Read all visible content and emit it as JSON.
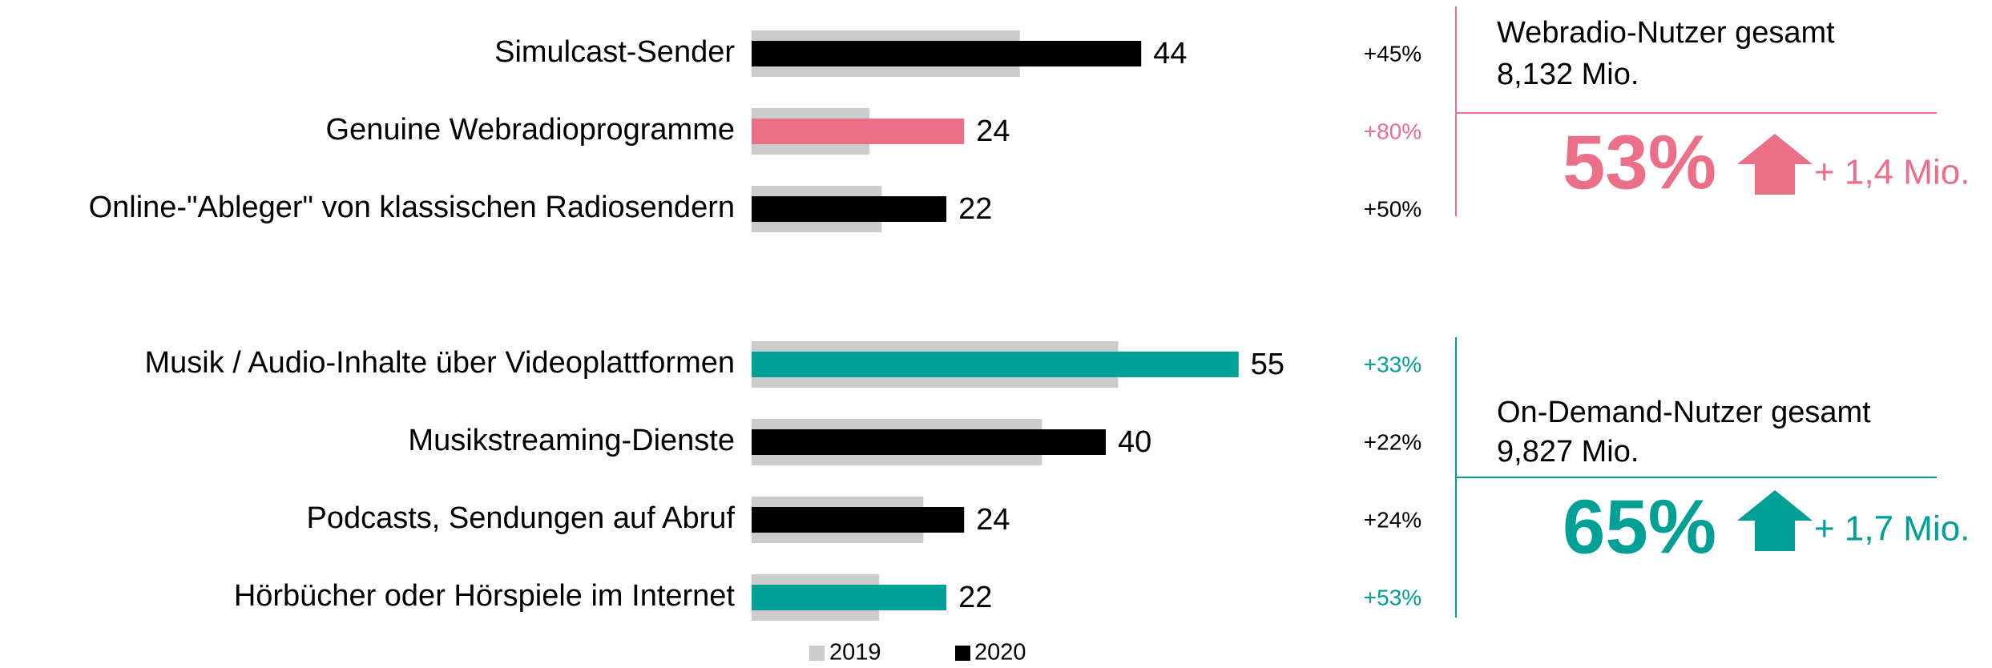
{
  "chart_data": {
    "type": "hbar",
    "categories": [
      "Simulcast-Sender",
      "Genuine Webradioprogramme",
      "Online-\"Ableger\" von klassischen Radiosendern",
      "Musik / Audio-Inhalte über Videoplattformen",
      "Musikstreaming-Dienste",
      "Podcasts, Sendungen auf Abruf",
      "Hörbücher oder Hörspiele im Internet"
    ],
    "series": [
      {
        "name": "2019",
        "color": "#cccccc",
        "values": [
          30.3,
          13.3,
          14.7,
          41.4,
          32.8,
          19.4,
          14.4
        ]
      },
      {
        "name": "2020",
        "color": "#000000",
        "colors": [
          "#000000",
          "#ec6f89",
          "#000000",
          "#00a096",
          "#000000",
          "#000000",
          "#00a096"
        ],
        "values": [
          44,
          24,
          22,
          55,
          40,
          24,
          22
        ]
      }
    ],
    "change_labels": [
      "+45%",
      "+80%",
      "+50%",
      "+33%",
      "+22%",
      "+24%",
      "+53%"
    ],
    "xlim": [
      0,
      100
    ],
    "panels": [
      {
        "title": "Webradio-Nutzer gesamt",
        "subtitle": "8,132 Mio.",
        "share": "53%",
        "growth": "+ 1,4 Mio.",
        "color": "#ec6f89"
      },
      {
        "title": "On-Demand-Nutzer gesamt",
        "subtitle": "9,827 Mio.",
        "share": "65%",
        "growth": "+ 1,7 Mio.",
        "color": "#00a096"
      }
    ]
  }
}
